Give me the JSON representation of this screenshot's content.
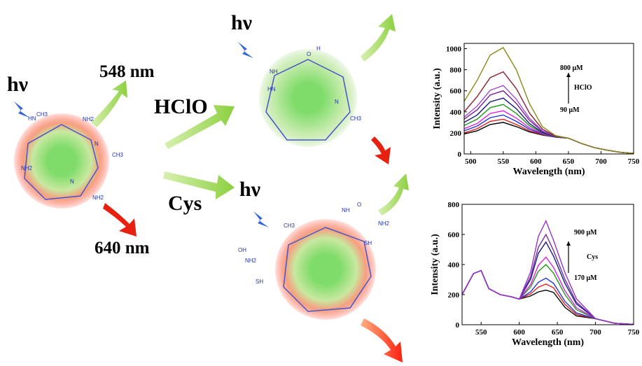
{
  "diagram": {
    "hv_left": "hν",
    "hv_top": "hν",
    "hv_bottom": "hν",
    "emission_green": "548 nm",
    "emission_red": "640 nm",
    "reagent_top": "HClO",
    "reagent_bottom": "Cys",
    "molecule_labels": [
      "NH2",
      "NH2",
      "NH2",
      "HN",
      "CH3",
      "CH3",
      "N",
      "N",
      "O",
      "H",
      "NH",
      "CH3",
      "HN",
      "N",
      "NH",
      "CH3",
      "OH",
      "NH2",
      "SH",
      "O",
      "NH2",
      "SH"
    ]
  },
  "chart_data": [
    {
      "type": "line",
      "x_label": "Wavelength (nm)",
      "y_label": "Intensity (a.u.)",
      "annotations": [
        "800 μM",
        "HClO",
        "90 μM"
      ],
      "x": [
        490,
        510,
        530,
        550,
        570,
        590,
        610,
        630,
        650,
        670,
        690,
        710,
        730,
        750
      ],
      "xlim": [
        490,
        750
      ],
      "xticks": [
        500,
        550,
        600,
        650,
        700,
        750
      ],
      "ylim": [
        0,
        1050
      ],
      "yticks": [
        0,
        200,
        400,
        600,
        800,
        1000
      ],
      "series": [
        {
          "color": "#000000",
          "values": [
            190,
            220,
            280,
            300,
            260,
            210,
            180,
            160,
            150,
            100,
            60,
            35,
            15,
            5
          ]
        },
        {
          "color": "#e0201b",
          "values": [
            200,
            240,
            310,
            330,
            280,
            220,
            185,
            160,
            150,
            100,
            60,
            35,
            15,
            5
          ]
        },
        {
          "color": "#2233dd",
          "values": [
            220,
            265,
            345,
            370,
            310,
            235,
            190,
            160,
            150,
            100,
            60,
            35,
            15,
            5
          ]
        },
        {
          "color": "#e020e0",
          "values": [
            240,
            290,
            385,
            410,
            340,
            250,
            195,
            162,
            150,
            100,
            60,
            35,
            15,
            5
          ]
        },
        {
          "color": "#1a9a1a",
          "values": [
            270,
            330,
            440,
            470,
            385,
            270,
            200,
            163,
            150,
            100,
            60,
            35,
            15,
            5
          ]
        },
        {
          "color": "#1a1a80",
          "values": [
            300,
            370,
            495,
            530,
            430,
            290,
            205,
            165,
            150,
            100,
            60,
            35,
            15,
            5
          ]
        },
        {
          "color": "#7a1a9a",
          "values": [
            330,
            420,
            560,
            600,
            480,
            320,
            215,
            167,
            150,
            100,
            60,
            35,
            15,
            5
          ]
        },
        {
          "color": "#a050d0",
          "values": [
            350,
            455,
            605,
            650,
            520,
            340,
            220,
            168,
            150,
            100,
            60,
            35,
            15,
            5
          ]
        },
        {
          "color": "#8b1a2a",
          "values": [
            400,
            545,
            725,
            780,
            620,
            390,
            235,
            170,
            150,
            100,
            60,
            35,
            15,
            5
          ]
        },
        {
          "color": "#8a8a1a",
          "values": [
            500,
            700,
            940,
            1010,
            800,
            480,
            260,
            175,
            150,
            100,
            60,
            35,
            15,
            5
          ]
        }
      ]
    },
    {
      "type": "line",
      "x_label": "Wavelength (nm)",
      "y_label": "Intensity (a.u.)",
      "annotations": [
        "900 μM",
        "Cys",
        "170 μM"
      ],
      "x": [
        525,
        540,
        550,
        560,
        575,
        590,
        600,
        615,
        625,
        635,
        645,
        660,
        675,
        700,
        725,
        750
      ],
      "xlim": [
        525,
        750
      ],
      "xticks": [
        550,
        600,
        650,
        700,
        750
      ],
      "ylim": [
        0,
        800
      ],
      "yticks": [
        0,
        200,
        400,
        600,
        800
      ],
      "series": [
        {
          "color": "#000000",
          "values": [
            200,
            340,
            360,
            240,
            200,
            185,
            170,
            191,
            218,
            230,
            215,
            115,
            58,
            40,
            10,
            2
          ]
        },
        {
          "color": "#e0201b",
          "values": [
            200,
            340,
            360,
            240,
            200,
            185,
            170,
            205,
            250,
            270,
            245,
            135,
            68,
            40,
            10,
            2
          ]
        },
        {
          "color": "#2233dd",
          "values": [
            200,
            340,
            360,
            240,
            200,
            185,
            170,
            219,
            282,
            310,
            275,
            155,
            78,
            40,
            10,
            2
          ]
        },
        {
          "color": "#1a9a1a",
          "values": [
            200,
            340,
            360,
            240,
            200,
            185,
            170,
            251,
            354,
            400,
            342,
            200,
            100,
            40,
            10,
            2
          ]
        },
        {
          "color": "#e020e0",
          "values": [
            200,
            340,
            360,
            240,
            200,
            185,
            170,
            268,
            394,
            450,
            380,
            225,
            113,
            40,
            10,
            2
          ]
        },
        {
          "color": "#1a1a80",
          "values": [
            200,
            340,
            360,
            240,
            200,
            185,
            170,
            303,
            474,
            550,
            455,
            275,
            138,
            40,
            10,
            2
          ]
        },
        {
          "color": "#7030a0",
          "values": [
            200,
            340,
            360,
            240,
            200,
            185,
            170,
            321,
            514,
            600,
            492,
            300,
            150,
            40,
            10,
            2
          ]
        },
        {
          "color": "#9933cc",
          "values": [
            200,
            340,
            360,
            240,
            200,
            185,
            170,
            352,
            586,
            690,
            560,
            345,
            173,
            40,
            10,
            2
          ]
        }
      ]
    }
  ]
}
